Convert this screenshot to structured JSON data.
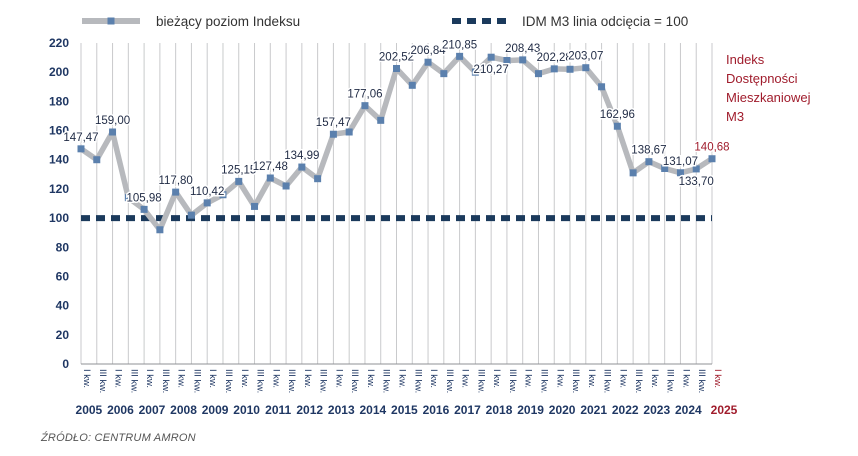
{
  "legend": {
    "series_label": "bieżący poziom Indeksu",
    "threshold_label": "IDM M3 linia odcięcia = 100"
  },
  "side_title": [
    "Indeks",
    "Dostępności",
    "Mieszkaniowej",
    "M3"
  ],
  "source": "ŹRÓDŁO: CENTRUM AMRON",
  "colors": {
    "series_line": "#b7b9bd",
    "marker": "#5b80ad",
    "threshold": "#1b3a5c",
    "axis_text": "#1f3763",
    "highlight": "#a01c2c",
    "grid": "#c9cacc"
  },
  "chart_data": {
    "type": "line",
    "ylim": [
      0,
      220
    ],
    "yticks": [
      0,
      20,
      40,
      60,
      80,
      100,
      120,
      140,
      160,
      180,
      200,
      220
    ],
    "years": [
      "2005",
      "2006",
      "2007",
      "2008",
      "2009",
      "2010",
      "2011",
      "2012",
      "2013",
      "2014",
      "2015",
      "2016",
      "2017",
      "2018",
      "2019",
      "2020",
      "2021",
      "2022",
      "2023",
      "2024",
      "2025"
    ],
    "highlight_year": "2025",
    "x": [
      "I kw.",
      "III kw.",
      "I kw.",
      "III kw.",
      "I kw.",
      "III kw.",
      "I kw.",
      "III kw.",
      "I kw.",
      "III kw.",
      "I kw.",
      "III kw.",
      "I kw.",
      "III kw.",
      "I kw.",
      "III kw.",
      "I kw.",
      "III kw.",
      "I kw.",
      "III kw.",
      "I kw.",
      "III kw.",
      "I kw.",
      "III kw.",
      "I kw.",
      "III kw.",
      "I kw.",
      "III kw.",
      "I kw.",
      "III kw.",
      "I kw.",
      "III kw.",
      "I kw.",
      "III kw.",
      "I kw.",
      "III kw.",
      "I kw.",
      "III kw.",
      "I kw.",
      "III kw.",
      "I kw."
    ],
    "series": [
      {
        "name": "bieżący poziom Indeksu",
        "values": [
          147.47,
          140,
          159.0,
          114,
          105.98,
          92,
          117.8,
          102,
          110.42,
          116,
          125.15,
          108,
          127.48,
          122,
          134.99,
          127,
          157.47,
          159,
          177.06,
          167,
          202.52,
          191,
          206.84,
          199,
          210.85,
          200,
          210.27,
          208,
          208.43,
          199,
          202.28,
          202,
          203.07,
          190,
          162.96,
          131,
          138.67,
          134,
          131.07,
          133.7,
          140.68
        ]
      },
      {
        "name": "IDM M3 linia odcięcia = 100",
        "value": 100
      }
    ],
    "labels": [
      {
        "index": 0,
        "text": "147,47"
      },
      {
        "index": 2,
        "text": "159,00"
      },
      {
        "index": 4,
        "text": "105,98"
      },
      {
        "index": 6,
        "text": "117,80"
      },
      {
        "index": 8,
        "text": "110,42"
      },
      {
        "index": 10,
        "text": "125,15"
      },
      {
        "index": 12,
        "text": "127,48"
      },
      {
        "index": 14,
        "text": "134,99"
      },
      {
        "index": 16,
        "text": "157,47"
      },
      {
        "index": 18,
        "text": "177,06"
      },
      {
        "index": 20,
        "text": "202,52"
      },
      {
        "index": 22,
        "text": "206,84"
      },
      {
        "index": 24,
        "text": "210,85"
      },
      {
        "index": 26,
        "text": "210,27"
      },
      {
        "index": 28,
        "text": "208,43"
      },
      {
        "index": 30,
        "text": "202,28"
      },
      {
        "index": 32,
        "text": "203,07"
      },
      {
        "index": 34,
        "text": "162,96"
      },
      {
        "index": 36,
        "text": "138,67"
      },
      {
        "index": 38,
        "text": "131,07"
      },
      {
        "index": 39,
        "text": "133,70"
      },
      {
        "index": 40,
        "text": "140,68"
      }
    ]
  }
}
